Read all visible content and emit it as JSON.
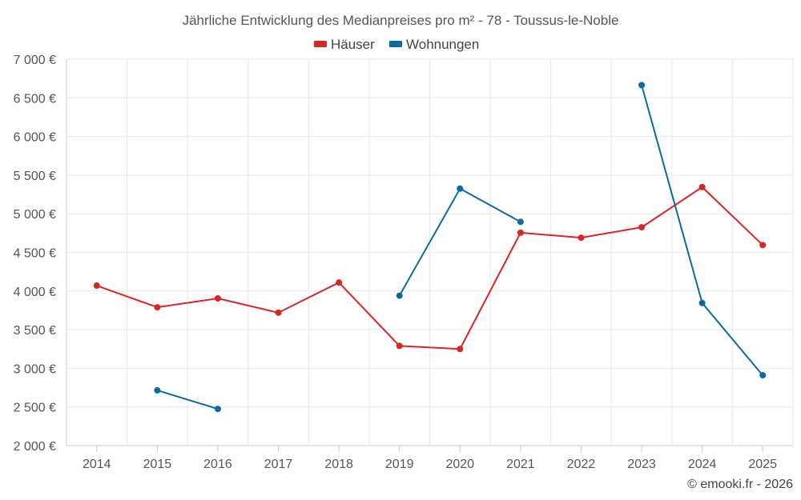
{
  "chart_data": {
    "type": "line",
    "title": "Jährliche Entwicklung des Medianpreises pro m² - 78 - Toussus-le-Noble",
    "categories": [
      "2014",
      "2015",
      "2016",
      "2017",
      "2018",
      "2019",
      "2020",
      "2021",
      "2022",
      "2023",
      "2024",
      "2025"
    ],
    "ylim": [
      2000,
      7000
    ],
    "yticks": [
      2000,
      2500,
      3000,
      3500,
      4000,
      4500,
      5000,
      5500,
      6000,
      6500,
      7000
    ],
    "ytick_labels": [
      "2 000 €",
      "2 500 €",
      "3 000 €",
      "3 500 €",
      "4 000 €",
      "4 500 €",
      "5 000 €",
      "5 500 €",
      "6 000 €",
      "6 500 €",
      "7 000 €"
    ],
    "xlabel": "",
    "ylabel": "",
    "grid": true,
    "legend_position": "top-center",
    "series": [
      {
        "name": "Häuser",
        "color": "#d62728",
        "values": [
          4070,
          3790,
          3905,
          3720,
          4110,
          3290,
          3250,
          4755,
          4690,
          4825,
          5345,
          4595
        ]
      },
      {
        "name": "Wohnungen",
        "color": "#0a6aa1",
        "values": [
          null,
          2715,
          2475,
          null,
          null,
          3940,
          5325,
          4895,
          null,
          6665,
          3845,
          2910
        ]
      }
    ]
  },
  "footer": {
    "credit": "© emooki.fr - 2026"
  }
}
